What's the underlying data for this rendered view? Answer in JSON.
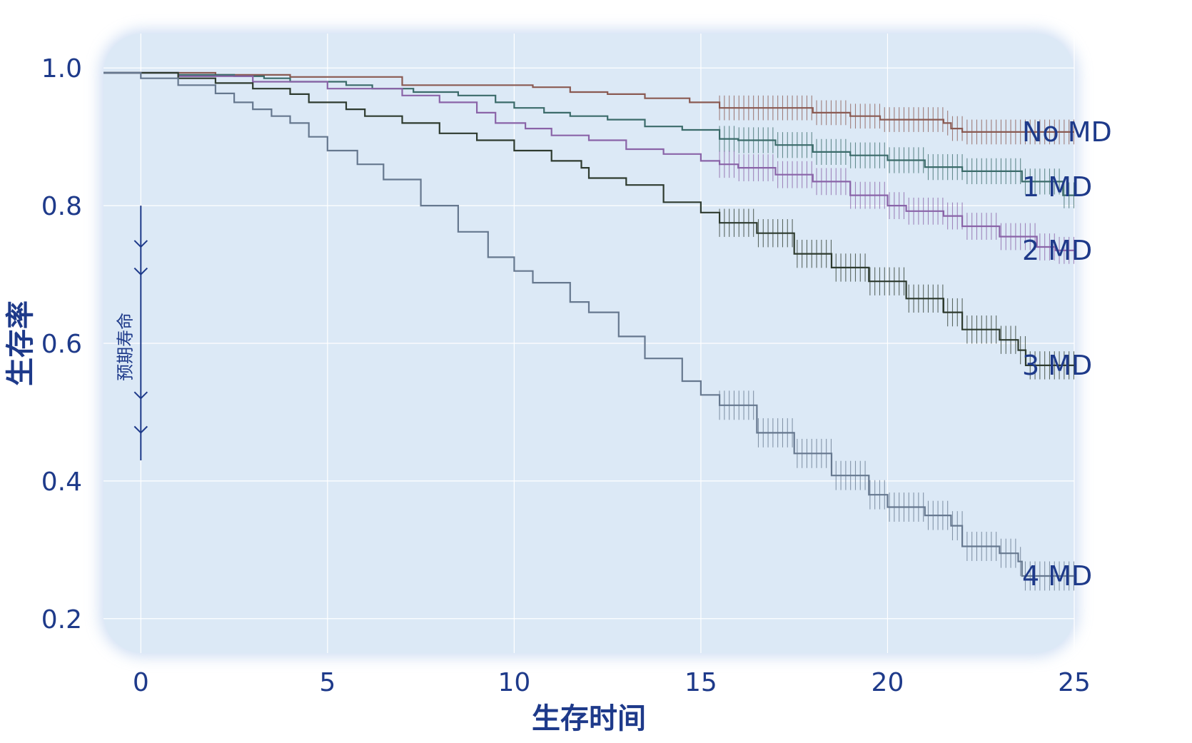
{
  "chart_data": {
    "type": "line",
    "title": "",
    "xlabel": "生存时间",
    "ylabel": "生存率",
    "xlim": [
      -1,
      25
    ],
    "ylim": [
      0.15,
      1.05
    ],
    "xticks": [
      0,
      5,
      10,
      15,
      20,
      25
    ],
    "xtick_labels": [
      "0",
      "5",
      "10",
      "15",
      "20",
      "25"
    ],
    "yticks": [
      1.0,
      0.8,
      0.6,
      0.4,
      0.2
    ],
    "ytick_labels": [
      "1.0",
      "0.8",
      "0.6",
      "0.4",
      "0.2"
    ],
    "grid": true,
    "plot_background": "#dce9f6",
    "grid_color": "#ffffff",
    "text_color": "#1e3a8a",
    "annotation": {
      "text": "预期寿命",
      "x": 0,
      "y_top": 0.8,
      "y_bottom": 0.43,
      "arrow_levels": [
        0.74,
        0.7,
        0.52,
        0.47
      ]
    },
    "ci_start_x": 15.5,
    "series": [
      {
        "name": "No MD",
        "color": "#8a5a52",
        "points": [
          [
            -1,
            0.993
          ],
          [
            0,
            0.993
          ],
          [
            2,
            0.99
          ],
          [
            4,
            0.987
          ],
          [
            6,
            0.987
          ],
          [
            6.9,
            0.987
          ],
          [
            7,
            0.975
          ],
          [
            9,
            0.975
          ],
          [
            10.5,
            0.972
          ],
          [
            11.5,
            0.965
          ],
          [
            12.5,
            0.962
          ],
          [
            13.5,
            0.956
          ],
          [
            14.7,
            0.95
          ],
          [
            15.5,
            0.942
          ],
          [
            17.5,
            0.942
          ],
          [
            18,
            0.935
          ],
          [
            19,
            0.93
          ],
          [
            19.8,
            0.925
          ],
          [
            21.5,
            0.92
          ],
          [
            21.7,
            0.912
          ],
          [
            22,
            0.907
          ],
          [
            25,
            0.907
          ]
        ]
      },
      {
        "name": "1 MD",
        "color": "#3b6b6a",
        "points": [
          [
            -1,
            0.993
          ],
          [
            0,
            0.993
          ],
          [
            1,
            0.99
          ],
          [
            2.5,
            0.988
          ],
          [
            3.3,
            0.985
          ],
          [
            4,
            0.98
          ],
          [
            5.5,
            0.975
          ],
          [
            6.2,
            0.97
          ],
          [
            7.3,
            0.965
          ],
          [
            8.5,
            0.96
          ],
          [
            9.5,
            0.95
          ],
          [
            10,
            0.942
          ],
          [
            10.8,
            0.935
          ],
          [
            11.5,
            0.93
          ],
          [
            12.5,
            0.925
          ],
          [
            13.5,
            0.915
          ],
          [
            14.5,
            0.91
          ],
          [
            15.5,
            0.897
          ],
          [
            16,
            0.895
          ],
          [
            17,
            0.888
          ],
          [
            18,
            0.878
          ],
          [
            19,
            0.873
          ],
          [
            20,
            0.866
          ],
          [
            21,
            0.856
          ],
          [
            22,
            0.85
          ],
          [
            23.5,
            0.85
          ],
          [
            23.6,
            0.835
          ],
          [
            24.6,
            0.835
          ],
          [
            24.7,
            0.815
          ],
          [
            25,
            0.815
          ]
        ]
      },
      {
        "name": "2 MD",
        "color": "#8a64a8",
        "points": [
          [
            -1,
            0.993
          ],
          [
            1,
            0.988
          ],
          [
            3,
            0.98
          ],
          [
            5,
            0.97
          ],
          [
            7,
            0.96
          ],
          [
            8,
            0.95
          ],
          [
            9,
            0.935
          ],
          [
            9.5,
            0.92
          ],
          [
            10.3,
            0.912
          ],
          [
            11,
            0.902
          ],
          [
            12,
            0.895
          ],
          [
            13,
            0.882
          ],
          [
            14,
            0.875
          ],
          [
            15,
            0.865
          ],
          [
            15.5,
            0.86
          ],
          [
            16,
            0.855
          ],
          [
            17,
            0.845
          ],
          [
            18,
            0.835
          ],
          [
            19,
            0.815
          ],
          [
            20,
            0.8
          ],
          [
            20.5,
            0.792
          ],
          [
            21.5,
            0.785
          ],
          [
            22,
            0.77
          ],
          [
            23,
            0.755
          ],
          [
            24,
            0.74
          ],
          [
            24.5,
            0.735
          ],
          [
            25,
            0.735
          ]
        ]
      },
      {
        "name": "3 MD",
        "color": "#2e3b2f",
        "points": [
          [
            -1,
            0.993
          ],
          [
            1,
            0.985
          ],
          [
            2,
            0.978
          ],
          [
            3,
            0.97
          ],
          [
            4,
            0.962
          ],
          [
            4.5,
            0.95
          ],
          [
            5.5,
            0.94
          ],
          [
            6,
            0.93
          ],
          [
            7,
            0.92
          ],
          [
            8,
            0.905
          ],
          [
            9,
            0.895
          ],
          [
            10,
            0.88
          ],
          [
            11,
            0.865
          ],
          [
            11.8,
            0.855
          ],
          [
            12,
            0.84
          ],
          [
            13,
            0.83
          ],
          [
            14,
            0.805
          ],
          [
            15,
            0.79
          ],
          [
            15.5,
            0.775
          ],
          [
            16.5,
            0.76
          ],
          [
            17.5,
            0.73
          ],
          [
            18.5,
            0.71
          ],
          [
            19.5,
            0.69
          ],
          [
            20.5,
            0.665
          ],
          [
            21.5,
            0.645
          ],
          [
            22,
            0.62
          ],
          [
            23,
            0.605
          ],
          [
            23.5,
            0.59
          ],
          [
            23.7,
            0.568
          ],
          [
            25,
            0.568
          ]
        ]
      },
      {
        "name": "4 MD",
        "color": "#66788f",
        "points": [
          [
            -1,
            0.993
          ],
          [
            0,
            0.985
          ],
          [
            1,
            0.975
          ],
          [
            2,
            0.963
          ],
          [
            2.5,
            0.95
          ],
          [
            3,
            0.94
          ],
          [
            3.5,
            0.93
          ],
          [
            4,
            0.92
          ],
          [
            4.5,
            0.9
          ],
          [
            5,
            0.88
          ],
          [
            5.8,
            0.86
          ],
          [
            6.5,
            0.838
          ],
          [
            7.5,
            0.8
          ],
          [
            8.5,
            0.762
          ],
          [
            9.3,
            0.725
          ],
          [
            10,
            0.705
          ],
          [
            10.5,
            0.688
          ],
          [
            11.5,
            0.66
          ],
          [
            12,
            0.645
          ],
          [
            12.8,
            0.61
          ],
          [
            13.5,
            0.578
          ],
          [
            14.5,
            0.545
          ],
          [
            15,
            0.525
          ],
          [
            15.5,
            0.51
          ],
          [
            16.5,
            0.47
          ],
          [
            17.5,
            0.44
          ],
          [
            18.5,
            0.408
          ],
          [
            19.5,
            0.38
          ],
          [
            20,
            0.362
          ],
          [
            21,
            0.35
          ],
          [
            21.7,
            0.335
          ],
          [
            22,
            0.305
          ],
          [
            23,
            0.295
          ],
          [
            23.5,
            0.283
          ],
          [
            23.6,
            0.262
          ],
          [
            25,
            0.262
          ]
        ]
      }
    ]
  }
}
